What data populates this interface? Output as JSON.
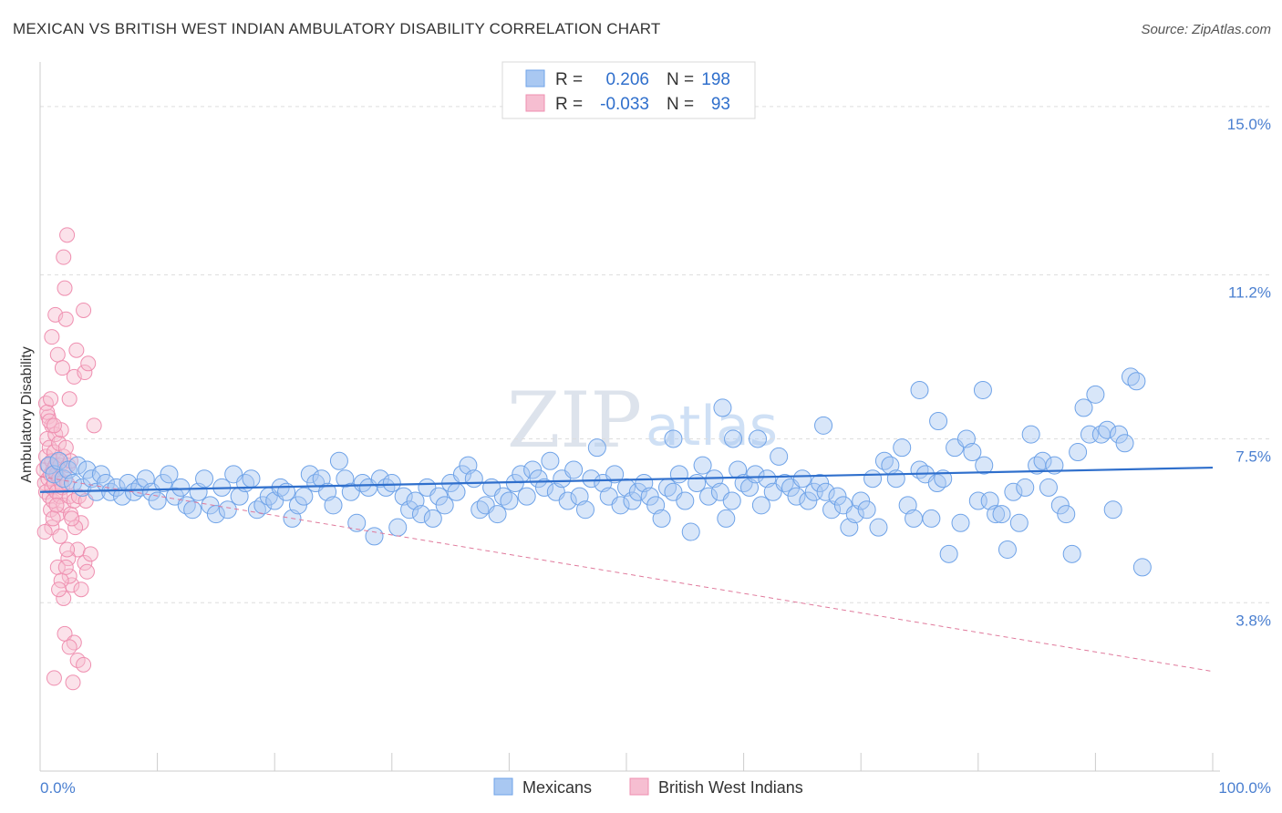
{
  "title": "MEXICAN VS BRITISH WEST INDIAN AMBULATORY DISABILITY CORRELATION CHART",
  "source": "Source: ZipAtlas.com",
  "watermark": {
    "zip": "ZIP",
    "atlas": "atlas"
  },
  "colors": {
    "blue": "#6fa3e8",
    "blue_fill": "#a9c8f2",
    "blue_line": "#2f6fcc",
    "pink": "#ef8fb0",
    "pink_fill": "#f6bed1",
    "pink_line": "#e07a9c",
    "grid": "#dddddd",
    "tick_text": "#4a7fd0"
  },
  "chart_data": {
    "type": "scatter",
    "ylabel": "Ambulatory Disability",
    "xlim": [
      0,
      100
    ],
    "ylim": [
      0,
      15.8
    ],
    "x_tick_labels": [
      "0.0%",
      "100.0%"
    ],
    "y_ticks": [
      3.8,
      7.5,
      11.2,
      15.0
    ],
    "y_tick_labels": [
      "3.8%",
      "7.5%",
      "11.2%",
      "15.0%"
    ],
    "legend": {
      "rows": [
        {
          "r_label": "R =",
          "r_value": "0.206",
          "n_label": "N =",
          "n_value": "198"
        },
        {
          "r_label": "R =",
          "r_value": "-0.033",
          "n_label": "N =",
          "n_value": "93"
        }
      ]
    },
    "series": [
      {
        "name": "Mexicans",
        "trend": {
          "x": [
            0,
            100
          ],
          "y": [
            6.3,
            6.85
          ]
        },
        "points": [
          [
            0.8,
            6.9
          ],
          [
            1.2,
            6.7
          ],
          [
            1.6,
            7.0
          ],
          [
            2.0,
            6.6
          ],
          [
            2.4,
            6.8
          ],
          [
            2.8,
            6.5
          ],
          [
            3.2,
            6.9
          ],
          [
            3.6,
            6.4
          ],
          [
            4.0,
            6.8
          ],
          [
            4.4,
            6.6
          ],
          [
            4.8,
            6.3
          ],
          [
            5.2,
            6.7
          ],
          [
            5.6,
            6.5
          ],
          [
            6.0,
            6.3
          ],
          [
            6.5,
            6.4
          ],
          [
            7.0,
            6.2
          ],
          [
            7.5,
            6.5
          ],
          [
            8.0,
            6.3
          ],
          [
            8.5,
            6.4
          ],
          [
            9.0,
            6.6
          ],
          [
            9.5,
            6.3
          ],
          [
            10.0,
            6.1
          ],
          [
            10.5,
            6.5
          ],
          [
            11.0,
            6.7
          ],
          [
            11.5,
            6.2
          ],
          [
            12.0,
            6.4
          ],
          [
            12.5,
            6.0
          ],
          [
            13.0,
            5.9
          ],
          [
            13.5,
            6.3
          ],
          [
            14.0,
            6.6
          ],
          [
            14.5,
            6.0
          ],
          [
            15.0,
            5.8
          ],
          [
            15.5,
            6.4
          ],
          [
            16.0,
            5.9
          ],
          [
            16.5,
            6.7
          ],
          [
            17.0,
            6.2
          ],
          [
            17.5,
            6.5
          ],
          [
            18.0,
            6.6
          ],
          [
            18.5,
            5.9
          ],
          [
            19.0,
            6.0
          ],
          [
            19.5,
            6.2
          ],
          [
            20.0,
            6.1
          ],
          [
            20.5,
            6.4
          ],
          [
            21.0,
            6.3
          ],
          [
            21.5,
            5.7
          ],
          [
            22.0,
            6.0
          ],
          [
            22.5,
            6.2
          ],
          [
            23.0,
            6.7
          ],
          [
            23.5,
            6.5
          ],
          [
            24.0,
            6.6
          ],
          [
            24.5,
            6.3
          ],
          [
            25.0,
            6.0
          ],
          [
            25.5,
            7.0
          ],
          [
            26.0,
            6.6
          ],
          [
            26.5,
            6.3
          ],
          [
            27.0,
            5.6
          ],
          [
            27.5,
            6.5
          ],
          [
            28.0,
            6.4
          ],
          [
            28.5,
            5.3
          ],
          [
            29.0,
            6.6
          ],
          [
            29.5,
            6.4
          ],
          [
            30.0,
            6.5
          ],
          [
            30.5,
            5.5
          ],
          [
            31.0,
            6.2
          ],
          [
            31.5,
            5.9
          ],
          [
            32.0,
            6.1
          ],
          [
            32.5,
            5.8
          ],
          [
            33.0,
            6.4
          ],
          [
            33.5,
            5.7
          ],
          [
            34.0,
            6.2
          ],
          [
            34.5,
            6.0
          ],
          [
            35.0,
            6.5
          ],
          [
            35.5,
            6.3
          ],
          [
            36.0,
            6.7
          ],
          [
            36.5,
            6.9
          ],
          [
            37.0,
            6.6
          ],
          [
            37.5,
            5.9
          ],
          [
            38.0,
            6.0
          ],
          [
            38.5,
            6.4
          ],
          [
            39.0,
            5.8
          ],
          [
            39.5,
            6.2
          ],
          [
            40.0,
            6.1
          ],
          [
            40.5,
            6.5
          ],
          [
            41.0,
            6.7
          ],
          [
            41.5,
            6.2
          ],
          [
            42.0,
            6.8
          ],
          [
            42.5,
            6.6
          ],
          [
            43.0,
            6.4
          ],
          [
            43.5,
            7.0
          ],
          [
            44.0,
            6.3
          ],
          [
            44.5,
            6.6
          ],
          [
            45.0,
            6.1
          ],
          [
            45.5,
            6.8
          ],
          [
            46.0,
            6.2
          ],
          [
            46.5,
            5.9
          ],
          [
            47.0,
            6.6
          ],
          [
            47.5,
            7.3
          ],
          [
            48.0,
            6.5
          ],
          [
            48.5,
            6.2
          ],
          [
            49.0,
            6.7
          ],
          [
            49.5,
            6.0
          ],
          [
            50.0,
            6.4
          ],
          [
            50.5,
            6.1
          ],
          [
            51.0,
            6.3
          ],
          [
            51.5,
            6.5
          ],
          [
            52.0,
            6.2
          ],
          [
            52.5,
            6.0
          ],
          [
            53.0,
            5.7
          ],
          [
            53.5,
            6.4
          ],
          [
            54.0,
            6.3
          ],
          [
            54.5,
            6.7
          ],
          [
            55.0,
            6.1
          ],
          [
            55.5,
            5.4
          ],
          [
            56.0,
            6.5
          ],
          [
            56.5,
            6.9
          ],
          [
            57.0,
            6.2
          ],
          [
            57.5,
            6.6
          ],
          [
            58.0,
            6.3
          ],
          [
            58.5,
            5.7
          ],
          [
            59.0,
            6.1
          ],
          [
            59.5,
            6.8
          ],
          [
            60.0,
            6.5
          ],
          [
            60.5,
            6.4
          ],
          [
            61.0,
            6.7
          ],
          [
            61.5,
            6.0
          ],
          [
            62.0,
            6.6
          ],
          [
            62.5,
            6.3
          ],
          [
            63.0,
            7.1
          ],
          [
            63.5,
            6.5
          ],
          [
            64.0,
            6.4
          ],
          [
            64.5,
            6.2
          ],
          [
            65.0,
            6.6
          ],
          [
            65.5,
            6.1
          ],
          [
            66.0,
            6.3
          ],
          [
            66.5,
            6.5
          ],
          [
            67.0,
            6.3
          ],
          [
            67.5,
            5.9
          ],
          [
            68.0,
            6.2
          ],
          [
            68.5,
            6.0
          ],
          [
            69.0,
            5.5
          ],
          [
            69.5,
            5.8
          ],
          [
            70.0,
            6.1
          ],
          [
            70.5,
            5.9
          ],
          [
            71.0,
            6.6
          ],
          [
            71.5,
            5.5
          ],
          [
            72.0,
            7.0
          ],
          [
            72.5,
            6.9
          ],
          [
            73.0,
            6.6
          ],
          [
            73.5,
            7.3
          ],
          [
            74.0,
            6.0
          ],
          [
            74.5,
            5.7
          ],
          [
            75.0,
            6.8
          ],
          [
            75.5,
            6.7
          ],
          [
            76.0,
            5.7
          ],
          [
            76.5,
            6.5
          ],
          [
            77.0,
            6.6
          ],
          [
            77.5,
            4.9
          ],
          [
            78.0,
            7.3
          ],
          [
            78.5,
            5.6
          ],
          [
            79.0,
            7.5
          ],
          [
            79.5,
            7.2
          ],
          [
            80.0,
            6.1
          ],
          [
            80.5,
            6.9
          ],
          [
            81.0,
            6.1
          ],
          [
            81.5,
            5.8
          ],
          [
            82.0,
            5.8
          ],
          [
            82.5,
            5.0
          ],
          [
            83.0,
            6.3
          ],
          [
            83.5,
            5.6
          ],
          [
            84.0,
            6.4
          ],
          [
            84.5,
            7.6
          ],
          [
            85.0,
            6.9
          ],
          [
            85.5,
            7.0
          ],
          [
            86.0,
            6.4
          ],
          [
            86.5,
            6.9
          ],
          [
            87.0,
            6.0
          ],
          [
            87.5,
            5.8
          ],
          [
            88.0,
            4.9
          ],
          [
            88.5,
            7.2
          ],
          [
            89.0,
            8.2
          ],
          [
            89.5,
            7.6
          ],
          [
            90.0,
            8.5
          ],
          [
            90.5,
            7.6
          ],
          [
            91.0,
            7.7
          ],
          [
            91.5,
            5.9
          ],
          [
            92.0,
            7.6
          ],
          [
            92.5,
            7.4
          ],
          [
            93.0,
            8.9
          ],
          [
            93.5,
            8.8
          ],
          [
            94.0,
            4.6
          ],
          [
            58.2,
            8.2
          ],
          [
            66.8,
            7.8
          ],
          [
            75.0,
            8.6
          ],
          [
            80.4,
            8.6
          ],
          [
            76.6,
            7.9
          ],
          [
            59.1,
            7.5
          ],
          [
            61.2,
            7.5
          ],
          [
            54.0,
            7.5
          ]
        ]
      },
      {
        "name": "British West Indians",
        "trend": {
          "x": [
            0,
            100
          ],
          "y": [
            6.65,
            2.25
          ]
        },
        "points": [
          [
            0.3,
            6.8
          ],
          [
            0.4,
            6.5
          ],
          [
            0.5,
            7.1
          ],
          [
            0.5,
            6.3
          ],
          [
            0.6,
            6.9
          ],
          [
            0.6,
            7.5
          ],
          [
            0.7,
            6.6
          ],
          [
            0.7,
            8.0
          ],
          [
            0.8,
            6.2
          ],
          [
            0.8,
            7.3
          ],
          [
            0.9,
            6.7
          ],
          [
            0.9,
            5.9
          ],
          [
            1.0,
            7.0
          ],
          [
            1.0,
            6.4
          ],
          [
            1.0,
            7.8
          ],
          [
            1.1,
            6.8
          ],
          [
            1.1,
            6.1
          ],
          [
            1.2,
            7.2
          ],
          [
            1.2,
            6.5
          ],
          [
            1.3,
            6.9
          ],
          [
            1.3,
            7.6
          ],
          [
            1.4,
            6.3
          ],
          [
            1.4,
            6.7
          ],
          [
            1.5,
            7.0
          ],
          [
            1.5,
            5.8
          ],
          [
            1.6,
            6.6
          ],
          [
            1.6,
            7.4
          ],
          [
            1.7,
            6.2
          ],
          [
            1.7,
            6.9
          ],
          [
            1.8,
            6.5
          ],
          [
            1.8,
            7.7
          ],
          [
            1.9,
            6.4
          ],
          [
            2.0,
            7.1
          ],
          [
            2.0,
            6.0
          ],
          [
            2.1,
            6.8
          ],
          [
            2.2,
            7.3
          ],
          [
            2.3,
            6.5
          ],
          [
            2.4,
            6.9
          ],
          [
            2.5,
            6.2
          ],
          [
            2.6,
            7.0
          ],
          [
            0.5,
            8.3
          ],
          [
            0.6,
            8.1
          ],
          [
            0.8,
            7.9
          ],
          [
            0.9,
            8.4
          ],
          [
            1.2,
            7.8
          ],
          [
            1.0,
            9.8
          ],
          [
            1.3,
            10.3
          ],
          [
            1.5,
            9.4
          ],
          [
            1.9,
            9.1
          ],
          [
            2.2,
            10.2
          ],
          [
            2.1,
            10.9
          ],
          [
            2.0,
            11.6
          ],
          [
            2.3,
            12.1
          ],
          [
            2.5,
            8.4
          ],
          [
            2.9,
            8.9
          ],
          [
            3.1,
            9.5
          ],
          [
            3.8,
            9.0
          ],
          [
            4.1,
            9.2
          ],
          [
            3.7,
            10.4
          ],
          [
            4.6,
            7.8
          ],
          [
            2.6,
            5.8
          ],
          [
            2.9,
            6.1
          ],
          [
            3.5,
            5.6
          ],
          [
            3.2,
            5.0
          ],
          [
            2.4,
            4.8
          ],
          [
            2.7,
            4.2
          ],
          [
            2.5,
            4.4
          ],
          [
            3.8,
            4.7
          ],
          [
            3.5,
            4.1
          ],
          [
            4.0,
            4.5
          ],
          [
            1.5,
            4.6
          ],
          [
            1.8,
            4.3
          ],
          [
            2.0,
            3.9
          ],
          [
            2.1,
            3.1
          ],
          [
            2.9,
            2.9
          ],
          [
            2.5,
            2.8
          ],
          [
            3.2,
            2.5
          ],
          [
            3.7,
            2.4
          ],
          [
            1.2,
            2.1
          ],
          [
            2.8,
            2.0
          ],
          [
            1.0,
            5.5
          ],
          [
            1.7,
            5.3
          ],
          [
            2.3,
            5.0
          ],
          [
            3.0,
            5.5
          ],
          [
            1.4,
            6.0
          ],
          [
            1.1,
            5.7
          ],
          [
            0.4,
            5.4
          ],
          [
            2.7,
            5.7
          ],
          [
            3.3,
            6.2
          ],
          [
            3.9,
            6.1
          ],
          [
            4.3,
            4.9
          ],
          [
            2.2,
            4.6
          ],
          [
            1.6,
            4.1
          ]
        ]
      }
    ]
  }
}
